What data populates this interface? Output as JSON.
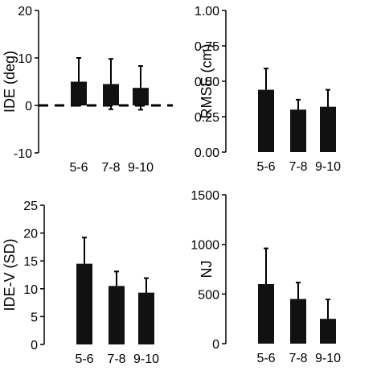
{
  "colors": {
    "bar": "#111111",
    "axis": "#000000"
  },
  "chart_data": [
    {
      "type": "bar",
      "categories": [
        "5-6",
        "7-8",
        "9-10"
      ],
      "values": [
        5.0,
        4.5,
        3.7
      ],
      "errors": [
        5.0,
        5.3,
        4.6
      ],
      "ylabel": "IDE (deg)",
      "xlabel": "",
      "ylim": [
        -10,
        20
      ],
      "yticks": [
        "-10",
        "0",
        "10",
        "20"
      ],
      "reference_line": {
        "y": 0,
        "style": "dashed"
      }
    },
    {
      "type": "bar",
      "categories": [
        "5-6",
        "7-8",
        "9-10"
      ],
      "values": [
        0.44,
        0.3,
        0.32
      ],
      "errors": [
        0.15,
        0.07,
        0.12
      ],
      "ylabel": "RMSE (cm)",
      "xlabel": "",
      "ylim": [
        0,
        1
      ],
      "yticks": [
        "0.00",
        "0.25",
        "0.50",
        "0.75",
        "1.00"
      ]
    },
    {
      "type": "bar",
      "categories": [
        "5-6",
        "7-8",
        "9-10"
      ],
      "values": [
        14.5,
        10.5,
        9.3
      ],
      "errors": [
        4.7,
        2.6,
        2.6
      ],
      "ylabel": "IDE-V (SD)",
      "xlabel": "",
      "ylim": [
        0,
        25
      ],
      "yticks": [
        "0",
        "5",
        "10",
        "15",
        "20",
        "25"
      ]
    },
    {
      "type": "bar",
      "categories": [
        "5-6",
        "7-8",
        "9-10"
      ],
      "values": [
        600,
        450,
        250
      ],
      "errors": [
        360,
        165,
        195
      ],
      "ylabel": "NJ",
      "xlabel": "",
      "ylim": [
        0,
        1500
      ],
      "yticks": [
        "0",
        "500",
        "1000",
        "1500"
      ]
    }
  ]
}
